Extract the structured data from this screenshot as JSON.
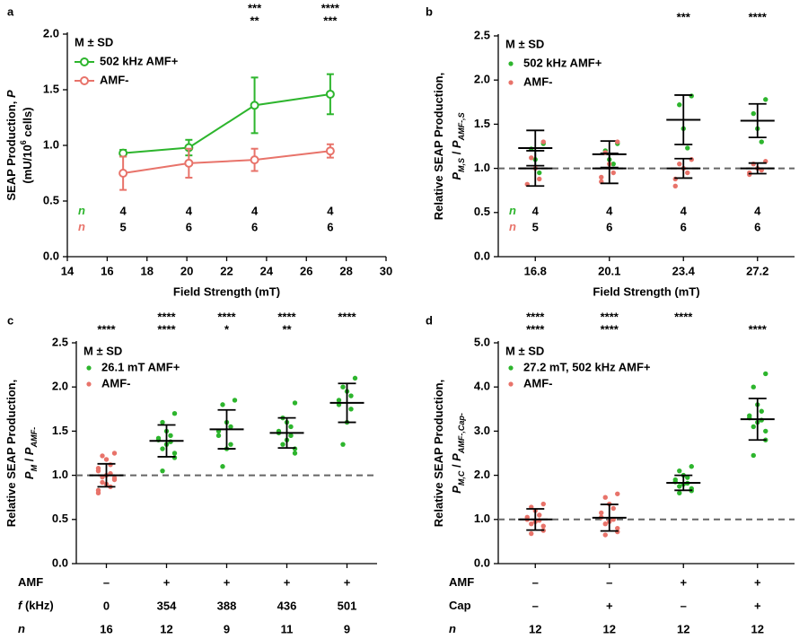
{
  "chart_data": [
    {
      "type": "line",
      "panel": "a",
      "ylabel": [
        [
          "SEAP Production, ",
          {
            "text": "P",
            "style": "italic"
          }
        ],
        [
          "(mU/10",
          {
            "text": "6",
            "style": "sup"
          },
          " cells)"
        ]
      ],
      "xlabel": "Field Strength (mT)",
      "legend_title": "M ± SD",
      "x": [
        16.8,
        20.1,
        23.4,
        27.2
      ],
      "xlim": [
        14,
        30
      ],
      "xticks": [
        14,
        16,
        18,
        20,
        22,
        24,
        26,
        28,
        30
      ],
      "ylim": [
        0,
        2
      ],
      "yticks": [
        {
          "value": 0,
          "label": "0.0"
        },
        {
          "value": 0.5,
          "label": "0.5"
        },
        {
          "value": 1,
          "label": "1.0"
        },
        {
          "value": 1.5,
          "label": "1.5"
        },
        {
          "value": 2,
          "label": "2.0"
        }
      ],
      "n_label": [
        {
          "text": "n",
          "style": "italic"
        }
      ],
      "series": [
        {
          "name": "502 kHz AMF+",
          "color": "#2db52d",
          "values": [
            0.93,
            0.98,
            1.36,
            1.46
          ],
          "errors": [
            0.03,
            0.07,
            0.25,
            0.18
          ],
          "n": [
            4,
            4,
            4,
            4
          ]
        },
        {
          "name": "AMF-",
          "color": "#e8736a",
          "values": [
            0.75,
            0.84,
            0.87,
            0.95
          ],
          "errors": [
            0.15,
            0.13,
            0.1,
            0.06
          ],
          "n": [
            5,
            6,
            6,
            6
          ]
        }
      ],
      "significance": [
        {
          "color": "#000000",
          "labels": [
            null,
            null,
            "***",
            "****"
          ]
        },
        {
          "color": "#888888",
          "labels": [
            null,
            null,
            "**",
            "***"
          ]
        }
      ]
    },
    {
      "type": "dot",
      "panel": "b",
      "ylabel": [
        [
          "Relative SEAP Production,"
        ],
        [
          {
            "text": "P",
            "style": "italic"
          },
          {
            "text": "M,S",
            "style": "sub"
          },
          " / ",
          {
            "text": "P",
            "style": "italic"
          },
          {
            "text": "AMF-,S",
            "style": "sub"
          }
        ]
      ],
      "xlabel": "Field Strength (mT)",
      "legend_title": "M ± SD",
      "categories": [
        "16.8",
        "20.1",
        "23.4",
        "27.2"
      ],
      "ylim": [
        0,
        2.5
      ],
      "yticks": [
        {
          "value": 0,
          "label": "0.0"
        },
        {
          "value": 0.5,
          "label": "0.5"
        },
        {
          "value": 1,
          "label": "1.0"
        },
        {
          "value": 1.5,
          "label": "1.5"
        },
        {
          "value": 2,
          "label": "2.0"
        },
        {
          "value": 2.5,
          "label": "2.5"
        }
      ],
      "reference_line": 1,
      "n_label": [
        {
          "text": "n",
          "style": "italic"
        }
      ],
      "series": [
        {
          "name": "502 kHz AMF+",
          "color": "#2db52d",
          "n": [
            4,
            4,
            4,
            4
          ],
          "points": [
            [
              1.28,
              1.22,
              1.1,
              0.95
            ],
            [
              1.28,
              1.2,
              1.1,
              1.05
            ],
            [
              1.82,
              1.72,
              1.45,
              1.23
            ],
            [
              1.78,
              1.62,
              1.45,
              1.3
            ]
          ],
          "mean": [
            1.23,
            1.16,
            1.55,
            1.54
          ],
          "sd": [
            0.2,
            0.15,
            0.28,
            0.19
          ]
        },
        {
          "name": "AMF-",
          "color": "#e8736a",
          "n": [
            5,
            6,
            6,
            6
          ],
          "points": [
            [
              1.3,
              1.12,
              1.0,
              0.88,
              0.82
            ],
            [
              1.3,
              1.18,
              1.05,
              0.95,
              0.9,
              0.85
            ],
            [
              1.1,
              1.05,
              1.0,
              0.95,
              0.88,
              0.8
            ],
            [
              1.08,
              1.05,
              1.0,
              0.98,
              0.95,
              0.93
            ]
          ],
          "mean": [
            1.0,
            1.0,
            1.0,
            1.0
          ],
          "sd": [
            0.2,
            0.17,
            0.11,
            0.06
          ]
        }
      ],
      "significance": [
        {
          "color": "#000000",
          "labels": [
            null,
            null,
            "***",
            "****"
          ]
        }
      ]
    },
    {
      "type": "dot",
      "panel": "c",
      "ylabel": [
        [
          "Relative SEAP Production,"
        ],
        [
          {
            "text": "P",
            "style": "italic"
          },
          {
            "text": "M",
            "style": "sub"
          },
          " / ",
          {
            "text": "P",
            "style": "italic"
          },
          {
            "text": "AMF-",
            "style": "sub"
          }
        ]
      ],
      "legend_title": "M ± SD",
      "ylim": [
        0,
        2.5
      ],
      "yticks": [
        {
          "value": 0,
          "label": "0.0"
        },
        {
          "value": 0.5,
          "label": "0.5"
        },
        {
          "value": 1,
          "label": "1.0"
        },
        {
          "value": 1.5,
          "label": "1.5"
        },
        {
          "value": 2,
          "label": "2.0"
        },
        {
          "value": 2.5,
          "label": "2.5"
        }
      ],
      "reference_line": 1,
      "series": [
        {
          "name": "26.1 mT AMF+",
          "color": "#2db52d",
          "points": [
            null,
            [
              1.7,
              1.6,
              1.5,
              1.45,
              1.42,
              1.4,
              1.38,
              1.35,
              1.3,
              1.25,
              1.2,
              1.05
            ],
            [
              1.85,
              1.8,
              1.6,
              1.55,
              1.5,
              1.45,
              1.35,
              1.3,
              1.1
            ],
            [
              1.82,
              1.65,
              1.6,
              1.55,
              1.5,
              1.48,
              1.45,
              1.4,
              1.35,
              1.3,
              1.25
            ],
            [
              2.1,
              2.0,
              1.95,
              1.9,
              1.85,
              1.8,
              1.75,
              1.6,
              1.35
            ]
          ],
          "mean": [
            null,
            1.39,
            1.52,
            1.48,
            1.82
          ],
          "sd": [
            null,
            0.18,
            0.22,
            0.17,
            0.22
          ]
        },
        {
          "name": "AMF-",
          "color": "#e8736a",
          "points": [
            [
              1.25,
              1.22,
              1.18,
              1.12,
              1.08,
              1.05,
              1.02,
              1.0,
              0.98,
              0.97,
              0.95,
              0.92,
              0.9,
              0.87,
              0.83,
              0.8
            ],
            null,
            null,
            null,
            null
          ],
          "mean": [
            1.0,
            null,
            null,
            null,
            null
          ],
          "sd": [
            0.13,
            null,
            null,
            null,
            null
          ]
        }
      ],
      "table": [
        {
          "label": [
            "AMF"
          ],
          "values": [
            "–",
            "+",
            "+",
            "+",
            "+"
          ]
        },
        {
          "label": [
            {
              "text": "f",
              "style": "italic"
            },
            " (kHz)"
          ],
          "values": [
            0,
            354,
            388,
            436,
            501
          ]
        },
        {
          "label": [
            {
              "text": "n",
              "style": "italic"
            }
          ],
          "values": [
            16,
            12,
            9,
            11,
            9
          ]
        }
      ],
      "significance": [
        {
          "color": "#000000",
          "labels": [
            null,
            "****",
            "****",
            "****",
            "****"
          ]
        },
        {
          "color": "#888888",
          "labels": [
            "****",
            "****",
            "*",
            "**",
            null
          ]
        }
      ]
    },
    {
      "type": "dot",
      "panel": "d",
      "ylabel": [
        [
          "Relative SEAP Production,"
        ],
        [
          {
            "text": "P",
            "style": "italic"
          },
          {
            "text": "M,C",
            "style": "sub"
          },
          " / ",
          {
            "text": "P",
            "style": "italic"
          },
          {
            "text": "AMF-,Cap-",
            "style": "sub"
          }
        ]
      ],
      "legend_title": "M ± SD",
      "ylim": [
        0,
        5
      ],
      "yticks": [
        {
          "value": 0,
          "label": "0.0"
        },
        {
          "value": 1,
          "label": "1.0"
        },
        {
          "value": 2,
          "label": "2.0"
        },
        {
          "value": 3,
          "label": "3.0"
        },
        {
          "value": 4,
          "label": "4.0"
        },
        {
          "value": 5,
          "label": "5.0"
        }
      ],
      "reference_line": 1,
      "series": [
        {
          "name": "27.2 mT, 502 kHz AMF+",
          "color": "#2db52d",
          "points": [
            null,
            null,
            [
              2.2,
              2.1,
              2.0,
              1.95,
              1.9,
              1.85,
              1.82,
              1.8,
              1.75,
              1.7,
              1.65,
              1.6
            ],
            [
              4.3,
              4.0,
              3.6,
              3.45,
              3.35,
              3.3,
              3.25,
              3.2,
              3.1,
              3.0,
              2.8,
              2.45
            ]
          ],
          "mean": [
            null,
            null,
            1.83,
            3.27
          ],
          "sd": [
            null,
            null,
            0.17,
            0.47
          ]
        },
        {
          "name": "AMF-",
          "color": "#e8736a",
          "points": [
            [
              1.35,
              1.28,
              1.2,
              1.1,
              1.05,
              1.0,
              0.98,
              0.95,
              0.9,
              0.85,
              0.75,
              0.68
            ],
            [
              1.58,
              1.5,
              1.35,
              1.25,
              1.15,
              1.05,
              1.0,
              0.95,
              0.9,
              0.8,
              0.72,
              0.65
            ],
            null,
            null
          ],
          "mean": [
            1.0,
            1.04,
            null,
            null
          ],
          "sd": [
            0.24,
            0.3,
            null,
            null
          ]
        }
      ],
      "table": [
        {
          "label": [
            "AMF"
          ],
          "values": [
            "–",
            "–",
            "+",
            "+"
          ]
        },
        {
          "label": [
            "Cap"
          ],
          "values": [
            "–",
            "+",
            "–",
            "+"
          ]
        },
        {
          "label": [
            {
              "text": "n",
              "style": "italic"
            }
          ],
          "values": [
            12,
            12,
            12,
            12
          ]
        }
      ],
      "significance": [
        {
          "color": "#000000",
          "labels": [
            "****",
            "****",
            "****",
            null
          ]
        },
        {
          "color": "#888888",
          "labels": [
            "****",
            "****",
            null,
            "****"
          ]
        }
      ]
    }
  ]
}
